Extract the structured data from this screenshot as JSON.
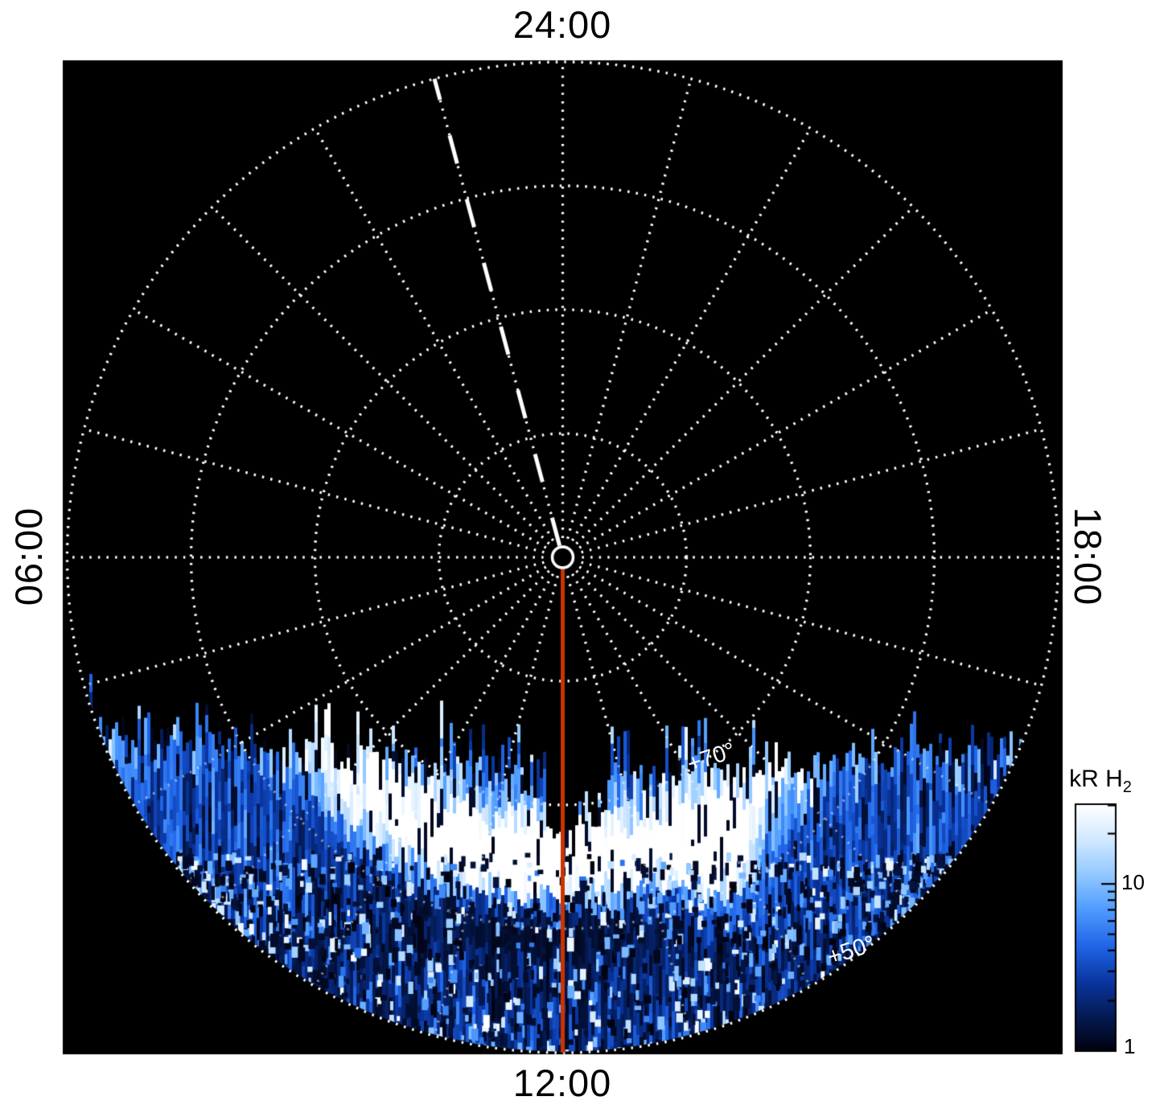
{
  "figure": {
    "background": "#ffffff",
    "plot_bg": "#000000"
  },
  "chart_data": {
    "type": "heatmap",
    "projection": "polar",
    "description": "Polar map of H2 auroral emission brightness versus local time (angle) and latitude (radius); emission data fills the dayside (lower) half of the dial.",
    "angular_axis": {
      "labels": [
        {
          "text": "24:00",
          "position": "top"
        },
        {
          "text": "06:00",
          "position": "left"
        },
        {
          "text": "12:00",
          "position": "bottom"
        },
        {
          "text": "18:00",
          "position": "right"
        }
      ],
      "spokes_hours": 24,
      "direction": "counterclockwise"
    },
    "radial_axis": {
      "pole_latitude_deg": 90,
      "edge_latitude_deg": 50,
      "circle_latitudes_deg": [
        80,
        70,
        60,
        50
      ],
      "labels": [
        {
          "text": "+70°",
          "latitude_deg": 70
        },
        {
          "text": "+50°",
          "latitude_deg": 50
        }
      ]
    },
    "grid": {
      "style": "dotted",
      "color": "#ffffff"
    },
    "reference_lines": [
      {
        "name": "noon-meridian-line",
        "style": "solid",
        "color": "#cc3300",
        "local_time": "12:00"
      },
      {
        "name": "dashed-meridian-line",
        "style": "dashed",
        "color": "#ffffff",
        "local_time": "01:00"
      }
    ],
    "emission": {
      "units": "kR",
      "coverage": {
        "latitude_min_deg": 50,
        "latitude_max_deg": 72,
        "local_time_range": [
          "06:45",
          "17:15"
        ]
      },
      "main_arc": {
        "latitude_deg": 62,
        "local_time_center": "11:40",
        "peak_kR": 30
      },
      "bright_spot": {
        "local_time": "13:50",
        "latitude_deg": 62,
        "peak_kR": 30
      },
      "background_range_kR": [
        1,
        10
      ]
    },
    "colorbar": {
      "title": "kR H",
      "title_sub": "2",
      "scale": "log",
      "min": 1,
      "max": 30,
      "tick_labels": [
        "10",
        "1"
      ],
      "tick_values": [
        10,
        1
      ],
      "minor_ticks": [
        2,
        3,
        4,
        5,
        6,
        7,
        8,
        9,
        20,
        30
      ],
      "gradient": [
        {
          "value": 1,
          "color": "#02020f"
        },
        {
          "value": 1.6,
          "color": "#041a52"
        },
        {
          "value": 2.6,
          "color": "#0a36a0"
        },
        {
          "value": 4.2,
          "color": "#1f64e6"
        },
        {
          "value": 7,
          "color": "#4f9bff"
        },
        {
          "value": 11,
          "color": "#8ec6ff"
        },
        {
          "value": 18,
          "color": "#cfe8ff"
        },
        {
          "value": 30,
          "color": "#ffffff"
        }
      ]
    }
  }
}
